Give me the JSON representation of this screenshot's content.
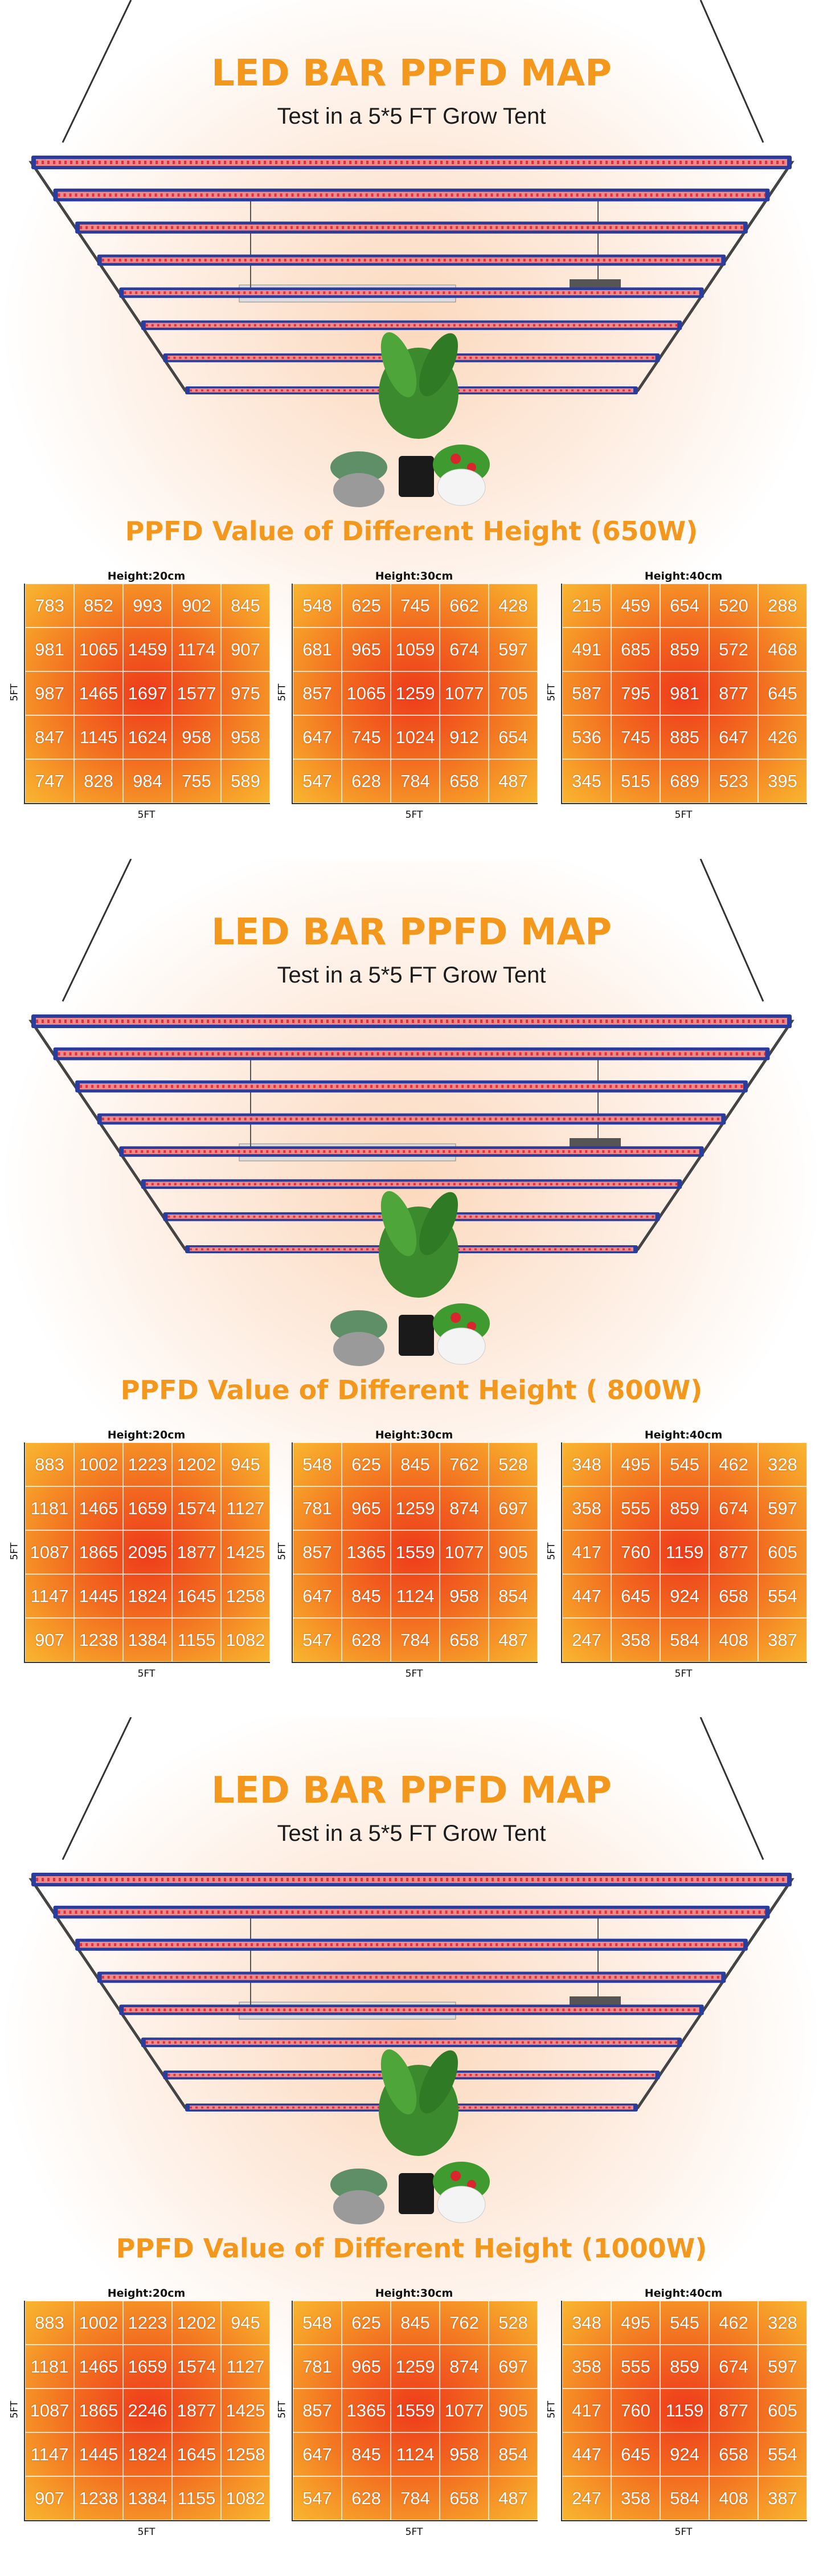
{
  "sections": [
    {
      "title": "LED BAR PPFD MAP",
      "subtitle": "Test in a 5*5 FT Grow Tent",
      "heading": "PPFD Value of Different Height (650W)",
      "maps": [
        {
          "label": "Height:20cm",
          "side_label": "5FT",
          "bottom_label": "5FT",
          "rows": [
            [
              783,
              852,
              993,
              902,
              845
            ],
            [
              981,
              1065,
              1459,
              1174,
              907
            ],
            [
              987,
              1465,
              1697,
              1577,
              975
            ],
            [
              847,
              1145,
              1624,
              958,
              958
            ],
            [
              747,
              828,
              984,
              755,
              589
            ]
          ]
        },
        {
          "label": "Height:30cm",
          "side_label": "5FT",
          "bottom_label": "5FT",
          "rows": [
            [
              548,
              625,
              745,
              662,
              428
            ],
            [
              681,
              965,
              1059,
              674,
              597
            ],
            [
              857,
              1065,
              1259,
              1077,
              705
            ],
            [
              647,
              745,
              1024,
              912,
              654
            ],
            [
              547,
              628,
              784,
              658,
              487
            ]
          ]
        },
        {
          "label": "Height:40cm",
          "side_label": "5FT",
          "bottom_label": "5FT",
          "rows": [
            [
              215,
              459,
              654,
              520,
              288
            ],
            [
              491,
              685,
              859,
              572,
              468
            ],
            [
              587,
              795,
              981,
              877,
              645
            ],
            [
              536,
              745,
              885,
              647,
              426
            ],
            [
              345,
              515,
              689,
              523,
              395
            ]
          ]
        }
      ]
    },
    {
      "title": "LED BAR PPFD MAP",
      "subtitle": "Test in a 5*5 FT Grow Tent",
      "heading": "PPFD Value of Different Height ( 800W)",
      "maps": [
        {
          "label": "Height:20cm",
          "side_label": "5FT",
          "bottom_label": "5FT",
          "rows": [
            [
              883,
              1002,
              1223,
              1202,
              945
            ],
            [
              1181,
              1465,
              1659,
              1574,
              1127
            ],
            [
              1087,
              1865,
              2095,
              1877,
              1425
            ],
            [
              1147,
              1445,
              1824,
              1645,
              1258
            ],
            [
              907,
              1238,
              1384,
              1155,
              1082
            ]
          ]
        },
        {
          "label": "Height:30cm",
          "side_label": "5FT",
          "bottom_label": "5FT",
          "rows": [
            [
              548,
              625,
              845,
              762,
              528
            ],
            [
              781,
              965,
              1259,
              874,
              697
            ],
            [
              857,
              1365,
              1559,
              1077,
              905
            ],
            [
              647,
              845,
              1124,
              958,
              854
            ],
            [
              547,
              628,
              784,
              658,
              487
            ]
          ]
        },
        {
          "label": "Height:40cm",
          "side_label": "5FT",
          "bottom_label": "5FT",
          "rows": [
            [
              348,
              495,
              545,
              462,
              328
            ],
            [
              358,
              555,
              859,
              674,
              597
            ],
            [
              417,
              760,
              1159,
              877,
              605
            ],
            [
              447,
              645,
              924,
              658,
              554
            ],
            [
              247,
              358,
              584,
              408,
              387
            ]
          ]
        }
      ]
    },
    {
      "title": "LED BAR PPFD MAP",
      "subtitle": "Test in a 5*5 FT Grow Tent",
      "heading": "PPFD Value of Different Height (1000W)",
      "maps": [
        {
          "label": "Height:20cm",
          "side_label": "5FT",
          "bottom_label": "5FT",
          "rows": [
            [
              883,
              1002,
              1223,
              1202,
              945
            ],
            [
              1181,
              1465,
              1659,
              1574,
              1127
            ],
            [
              1087,
              1865,
              2246,
              1877,
              1425
            ],
            [
              1147,
              1445,
              1824,
              1645,
              1258
            ],
            [
              907,
              1238,
              1384,
              1155,
              1082
            ]
          ]
        },
        {
          "label": "Height:30cm",
          "side_label": "5FT",
          "bottom_label": "5FT",
          "rows": [
            [
              548,
              625,
              845,
              762,
              528
            ],
            [
              781,
              965,
              1259,
              874,
              697
            ],
            [
              857,
              1365,
              1559,
              1077,
              905
            ],
            [
              647,
              845,
              1124,
              958,
              854
            ],
            [
              547,
              628,
              784,
              658,
              487
            ]
          ]
        },
        {
          "label": "Height:40cm",
          "side_label": "5FT",
          "bottom_label": "5FT",
          "rows": [
            [
              348,
              495,
              545,
              462,
              328
            ],
            [
              358,
              555,
              859,
              674,
              597
            ],
            [
              417,
              760,
              1159,
              877,
              605
            ],
            [
              447,
              645,
              924,
              658,
              554
            ],
            [
              247,
              358,
              584,
              408,
              387
            ]
          ]
        }
      ]
    }
  ]
}
